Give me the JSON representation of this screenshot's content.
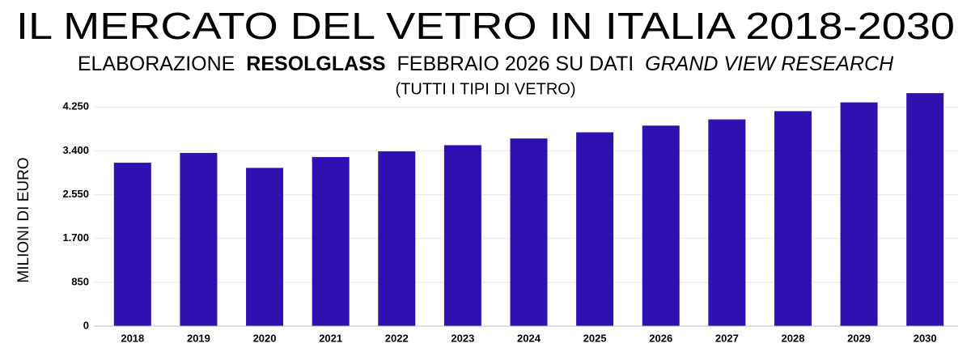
{
  "chart_data": {
    "type": "bar",
    "title": "IL MERCATO DEL VETRO IN ITALIA 2018-2030",
    "subtitle_parts": [
      "ELABORAZIONE",
      "RESOLGLASS",
      "FEBBRAIO 2026 SU DATI",
      "GRAND VIEW RESEARCH"
    ],
    "note": "(TUTTI I TIPI DI VETRO)",
    "y_label": "MILIONI DI EURO",
    "categories": [
      "2018",
      "2019",
      "2020",
      "2021",
      "2022",
      "2023",
      "2024",
      "2025",
      "2026",
      "2027",
      "2028",
      "2029",
      "2030"
    ],
    "values": [
      3170,
      3360,
      3070,
      3280,
      3390,
      3510,
      3640,
      3760,
      3890,
      4010,
      4170,
      4340,
      4520
    ],
    "color": "#3010b0",
    "ylim": [
      0,
      4600
    ],
    "yticks": [
      0,
      {
        "value": 850,
        "label": "850"
      },
      {
        "value": 1700,
        "label": "1.700"
      },
      {
        "value": 2550,
        "label": "2.550"
      },
      {
        "value": 3400,
        "label": "3.400"
      },
      {
        "value": 4250,
        "label": "4.250"
      }
    ],
    "grid": true
  }
}
